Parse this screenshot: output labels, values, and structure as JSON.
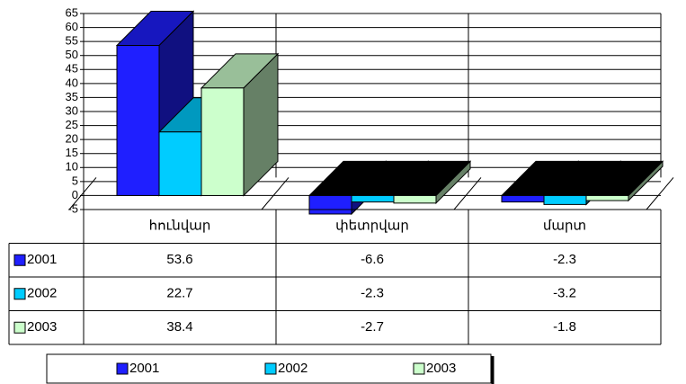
{
  "chart_data": {
    "type": "bar3d",
    "categories": [
      "հունվար",
      "փետրվար",
      "մարտ"
    ],
    "series": [
      {
        "name": "2001",
        "color": "#1f1fff",
        "values": [
          53.6,
          -6.6,
          -2.3
        ]
      },
      {
        "name": "2002",
        "color": "#00ccff",
        "values": [
          22.7,
          -2.3,
          -3.2
        ]
      },
      {
        "name": "2003",
        "color": "#ccffcc",
        "values": [
          38.4,
          -2.7,
          -1.8
        ]
      }
    ],
    "ylim": [
      -5,
      65
    ],
    "yticks": [
      -5,
      0,
      5,
      10,
      15,
      20,
      25,
      30,
      35,
      40,
      45,
      50,
      55,
      60,
      65
    ],
    "grid": true,
    "data_table": true,
    "legend": "bottom"
  }
}
